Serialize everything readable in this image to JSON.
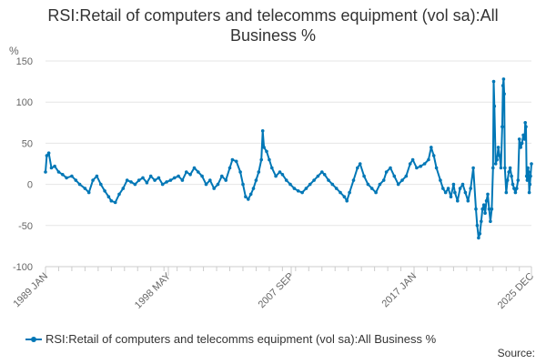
{
  "chart_data": {
    "type": "line",
    "title": "RSI:Retail of computers and telecomms equipment (vol sa):All Business %",
    "ylabel": "%",
    "xlabel": "",
    "ylim": [
      -100,
      150
    ],
    "yticks": [
      150,
      100,
      50,
      0,
      -50,
      -100
    ],
    "xlim": [
      1989.0,
      2025.917
    ],
    "xticks": [
      {
        "label": "1989 JAN",
        "x": 1989.0
      },
      {
        "label": "1998 MAY",
        "x": 1998.333
      },
      {
        "label": "2007 SEP",
        "x": 2007.667
      },
      {
        "label": "2017 JAN",
        "x": 2017.0
      },
      {
        "label": "2025 DEC",
        "x": 2025.917
      }
    ],
    "grid": true,
    "legend_position": "bottom",
    "color": "#0077b6",
    "series": [
      {
        "name": "RSI:Retail of computers and telecomms equipment (vol sa):All Business %",
        "points": [
          [
            1989.0,
            15
          ],
          [
            1989.1,
            35
          ],
          [
            1989.25,
            38
          ],
          [
            1989.45,
            20
          ],
          [
            1989.7,
            22
          ],
          [
            1990.0,
            15
          ],
          [
            1990.3,
            12
          ],
          [
            1990.6,
            8
          ],
          [
            1991.0,
            10
          ],
          [
            1991.3,
            5
          ],
          [
            1991.6,
            0
          ],
          [
            1992.0,
            -5
          ],
          [
            1992.3,
            -10
          ],
          [
            1992.6,
            5
          ],
          [
            1992.9,
            10
          ],
          [
            1993.2,
            0
          ],
          [
            1993.5,
            -8
          ],
          [
            1993.8,
            -15
          ],
          [
            1994.0,
            -20
          ],
          [
            1994.3,
            -22
          ],
          [
            1994.6,
            -12
          ],
          [
            1994.9,
            -5
          ],
          [
            1995.2,
            5
          ],
          [
            1995.5,
            3
          ],
          [
            1995.8,
            0
          ],
          [
            1996.1,
            5
          ],
          [
            1996.4,
            8
          ],
          [
            1996.7,
            2
          ],
          [
            1997.0,
            10
          ],
          [
            1997.3,
            5
          ],
          [
            1997.6,
            8
          ],
          [
            1997.9,
            0
          ],
          [
            1998.2,
            3
          ],
          [
            1998.5,
            5
          ],
          [
            1998.8,
            8
          ],
          [
            1999.1,
            10
          ],
          [
            1999.4,
            5
          ],
          [
            1999.7,
            15
          ],
          [
            2000.0,
            12
          ],
          [
            2000.3,
            20
          ],
          [
            2000.6,
            15
          ],
          [
            2000.9,
            10
          ],
          [
            2001.2,
            0
          ],
          [
            2001.5,
            5
          ],
          [
            2001.8,
            -5
          ],
          [
            2002.1,
            0
          ],
          [
            2002.4,
            10
          ],
          [
            2002.7,
            5
          ],
          [
            2003.0,
            20
          ],
          [
            2003.2,
            30
          ],
          [
            2003.5,
            28
          ],
          [
            2003.8,
            15
          ],
          [
            2004.0,
            0
          ],
          [
            2004.2,
            -15
          ],
          [
            2004.4,
            -18
          ],
          [
            2004.6,
            -12
          ],
          [
            2004.8,
            -5
          ],
          [
            2005.0,
            5
          ],
          [
            2005.2,
            15
          ],
          [
            2005.4,
            30
          ],
          [
            2005.5,
            65
          ],
          [
            2005.6,
            45
          ],
          [
            2005.8,
            40
          ],
          [
            2006.0,
            30
          ],
          [
            2006.2,
            20
          ],
          [
            2006.5,
            10
          ],
          [
            2006.8,
            15
          ],
          [
            2007.0,
            12
          ],
          [
            2007.3,
            5
          ],
          [
            2007.6,
            0
          ],
          [
            2007.9,
            -5
          ],
          [
            2008.2,
            -8
          ],
          [
            2008.5,
            -10
          ],
          [
            2008.8,
            -5
          ],
          [
            2009.1,
            0
          ],
          [
            2009.4,
            5
          ],
          [
            2009.7,
            10
          ],
          [
            2010.0,
            15
          ],
          [
            2010.2,
            12
          ],
          [
            2010.5,
            5
          ],
          [
            2010.8,
            0
          ],
          [
            2011.1,
            -5
          ],
          [
            2011.4,
            -10
          ],
          [
            2011.7,
            -15
          ],
          [
            2011.9,
            -20
          ],
          [
            2012.1,
            -10
          ],
          [
            2012.4,
            5
          ],
          [
            2012.7,
            20
          ],
          [
            2012.9,
            25
          ],
          [
            2013.2,
            10
          ],
          [
            2013.5,
            0
          ],
          [
            2013.8,
            -5
          ],
          [
            2014.1,
            -10
          ],
          [
            2014.4,
            0
          ],
          [
            2014.7,
            5
          ],
          [
            2014.9,
            15
          ],
          [
            2015.2,
            20
          ],
          [
            2015.5,
            10
          ],
          [
            2015.8,
            0
          ],
          [
            2016.1,
            5
          ],
          [
            2016.4,
            10
          ],
          [
            2016.7,
            25
          ],
          [
            2016.9,
            30
          ],
          [
            2017.2,
            20
          ],
          [
            2017.5,
            22
          ],
          [
            2017.8,
            25
          ],
          [
            2018.1,
            30
          ],
          [
            2018.3,
            45
          ],
          [
            2018.5,
            35
          ],
          [
            2018.7,
            20
          ],
          [
            2019.0,
            5
          ],
          [
            2019.2,
            -5
          ],
          [
            2019.4,
            -10
          ],
          [
            2019.6,
            -5
          ],
          [
            2019.8,
            -15
          ],
          [
            2020.0,
            0
          ],
          [
            2020.1,
            -10
          ],
          [
            2020.3,
            -20
          ],
          [
            2020.5,
            -5
          ],
          [
            2020.7,
            0
          ],
          [
            2020.9,
            -10
          ],
          [
            2021.1,
            -20
          ],
          [
            2021.3,
            -5
          ],
          [
            2021.5,
            20
          ],
          [
            2021.7,
            -30
          ],
          [
            2021.8,
            -50
          ],
          [
            2021.9,
            -65
          ],
          [
            2022.0,
            -60
          ],
          [
            2022.1,
            -45
          ],
          [
            2022.2,
            -30
          ],
          [
            2022.3,
            -25
          ],
          [
            2022.4,
            -35
          ],
          [
            2022.5,
            -20
          ],
          [
            2022.6,
            -12
          ],
          [
            2022.7,
            -30
          ],
          [
            2022.8,
            -45
          ],
          [
            2022.9,
            -30
          ],
          [
            2023.0,
            20
          ],
          [
            2023.05,
            125
          ],
          [
            2023.1,
            95
          ],
          [
            2023.2,
            25
          ],
          [
            2023.3,
            30
          ],
          [
            2023.4,
            45
          ],
          [
            2023.5,
            35
          ],
          [
            2023.6,
            20
          ],
          [
            2023.7,
            70
          ],
          [
            2023.75,
            120
          ],
          [
            2023.8,
            128
          ],
          [
            2023.85,
            110
          ],
          [
            2023.9,
            20
          ],
          [
            2024.0,
            -10
          ],
          [
            2024.1,
            5
          ],
          [
            2024.2,
            15
          ],
          [
            2024.3,
            20
          ],
          [
            2024.4,
            10
          ],
          [
            2024.5,
            0
          ],
          [
            2024.6,
            -5
          ],
          [
            2024.7,
            -10
          ],
          [
            2024.8,
            -5
          ],
          [
            2024.9,
            5
          ],
          [
            2025.0,
            55
          ],
          [
            2025.1,
            45
          ],
          [
            2025.2,
            50
          ],
          [
            2025.3,
            60
          ],
          [
            2025.4,
            55
          ],
          [
            2025.45,
            75
          ],
          [
            2025.5,
            70
          ],
          [
            2025.55,
            10
          ],
          [
            2025.6,
            5
          ],
          [
            2025.65,
            20
          ],
          [
            2025.7,
            15
          ],
          [
            2025.75,
            -10
          ],
          [
            2025.8,
            0
          ],
          [
            2025.85,
            10
          ],
          [
            2025.917,
            25
          ]
        ]
      }
    ],
    "legend": "RSI:Retail of computers and telecomms equipment (vol sa):All Business %",
    "source_label": "Source:"
  }
}
